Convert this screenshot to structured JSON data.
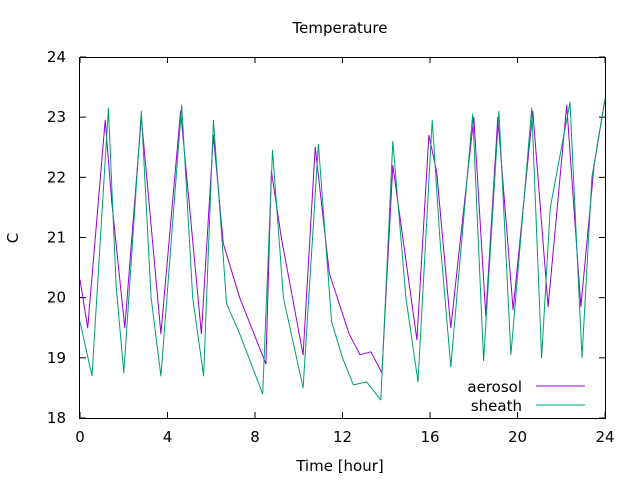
{
  "chart_data": {
    "type": "line",
    "title": "Temperature",
    "xlabel": "Time [hour]",
    "ylabel": "C",
    "xlim": [
      0,
      24
    ],
    "ylim": [
      18,
      24
    ],
    "xticks": [
      0,
      4,
      8,
      12,
      16,
      20,
      24
    ],
    "yticks": [
      18,
      19,
      20,
      21,
      22,
      23,
      24
    ],
    "grid": false,
    "legend_position": "bottom-right",
    "series": [
      {
        "name": "aerosol",
        "color": "#9400d3",
        "x": [
          0,
          0.35,
          1.15,
          1.45,
          2.05,
          2.8,
          3.7,
          4.6,
          5.55,
          6.1,
          6.55,
          7.3,
          8.5,
          8.75,
          9.2,
          10.2,
          10.75,
          11.4,
          12.3,
          12.8,
          13.3,
          13.8,
          14.3,
          15.4,
          15.95,
          16.3,
          16.95,
          18.0,
          18.55,
          19.1,
          19.8,
          20.7,
          21.4,
          22.25,
          22.9,
          23.5,
          24.0
        ],
        "y": [
          20.3,
          19.5,
          22.95,
          21.6,
          19.5,
          23.0,
          19.4,
          23.1,
          19.4,
          22.7,
          20.9,
          20.0,
          18.9,
          22.1,
          21.0,
          19.05,
          22.5,
          20.4,
          19.4,
          19.05,
          19.1,
          18.75,
          22.2,
          19.3,
          22.7,
          22.1,
          19.5,
          23.0,
          19.7,
          23.0,
          19.8,
          23.1,
          19.85,
          23.2,
          19.85,
          22.2,
          23.3
        ]
      },
      {
        "name": "sheath",
        "color": "#009e73",
        "x": [
          0,
          0.55,
          1.3,
          1.65,
          2.0,
          2.8,
          3.25,
          3.7,
          4.65,
          5.15,
          5.65,
          6.1,
          6.7,
          7.3,
          8.35,
          8.8,
          9.3,
          10.2,
          10.9,
          11.5,
          12.0,
          12.5,
          13.1,
          13.75,
          14.3,
          14.9,
          15.45,
          16.1,
          16.45,
          16.95,
          17.95,
          18.45,
          19.15,
          19.7,
          20.65,
          21.1,
          21.5,
          22.4,
          22.95,
          23.4,
          24.0
        ],
        "y": [
          19.6,
          18.7,
          23.15,
          20.2,
          18.75,
          23.1,
          20.0,
          18.7,
          23.2,
          20.0,
          18.7,
          22.95,
          19.9,
          19.4,
          18.4,
          22.45,
          20.0,
          18.5,
          22.55,
          19.6,
          19.0,
          18.55,
          18.6,
          18.3,
          22.6,
          20.0,
          18.6,
          22.95,
          21.0,
          18.85,
          23.05,
          18.95,
          23.1,
          19.05,
          23.15,
          19.0,
          21.5,
          23.25,
          19.0,
          22.0,
          23.3
        ]
      }
    ]
  }
}
